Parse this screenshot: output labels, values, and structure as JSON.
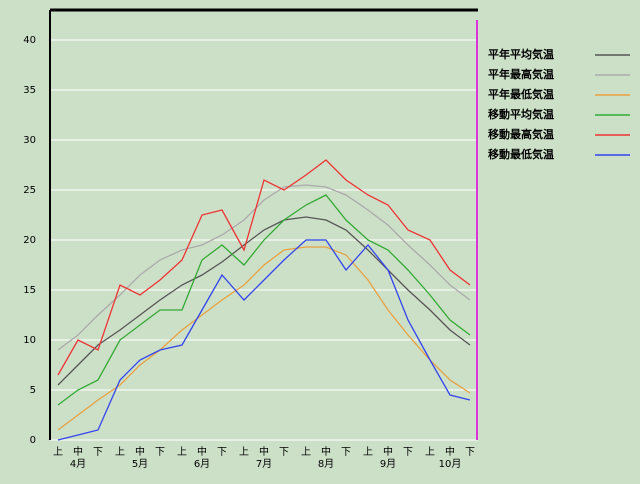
{
  "chart_data": {
    "type": "line",
    "categories": [
      "上",
      "中",
      "下",
      "上",
      "中",
      "下",
      "上",
      "中",
      "下",
      "上",
      "中",
      "下",
      "上",
      "中",
      "下",
      "上",
      "中",
      "下",
      "上",
      "中",
      "下"
    ],
    "months": [
      "4月",
      "5月",
      "6月",
      "7月",
      "8月",
      "9月",
      "10月"
    ],
    "ylim": [
      0,
      43
    ],
    "yticks": [
      0,
      5,
      10,
      15,
      20,
      25,
      30,
      35,
      40
    ],
    "grid": true,
    "legend": "right",
    "series": [
      {
        "name": "平年平均気温",
        "color": "#555555",
        "values": [
          5.5,
          7.5,
          9.5,
          11,
          12.5,
          14,
          15.5,
          16.5,
          17.8,
          19.5,
          21,
          22,
          22.3,
          22,
          21,
          19,
          17,
          15,
          13,
          11,
          9.5
        ]
      },
      {
        "name": "平年最高気温",
        "color": "#aaaaaa",
        "values": [
          9,
          10.5,
          12.5,
          14.5,
          16.5,
          18,
          19,
          19.5,
          20.5,
          22,
          24,
          25.3,
          25.5,
          25.3,
          24.5,
          23,
          21.5,
          19.5,
          17.5,
          15.5,
          14
        ]
      },
      {
        "name": "平年最低気温",
        "color": "#e8a040",
        "values": [
          1,
          2.5,
          4,
          5.5,
          7.5,
          9,
          11,
          12.5,
          14,
          15.5,
          17.5,
          19,
          19.3,
          19.3,
          18.5,
          16,
          13,
          10.5,
          8,
          6,
          4.7
        ]
      },
      {
        "name": "移動平均気温",
        "color": "#33aa33",
        "values": [
          3.5,
          5,
          6,
          10,
          11.5,
          13,
          13,
          18,
          19.5,
          17.5,
          20,
          22,
          23.5,
          24.5,
          22,
          20,
          19,
          17,
          14.5,
          12,
          10.5
        ]
      },
      {
        "name": "移動最高気温",
        "color": "#ee3333",
        "values": [
          6.5,
          10,
          9,
          15.5,
          14.5,
          16,
          18,
          22.5,
          23,
          19,
          26,
          25,
          26.5,
          28,
          26,
          24.5,
          23.5,
          21,
          20,
          17,
          15.5
        ]
      },
      {
        "name": "移動最低気温",
        "color": "#3344ee",
        "values": [
          0,
          0.5,
          1,
          6,
          8,
          9,
          9.5,
          13,
          16.5,
          14,
          16,
          18,
          20,
          20,
          17,
          19.5,
          17,
          12,
          8,
          4.5,
          4
        ]
      }
    ]
  }
}
